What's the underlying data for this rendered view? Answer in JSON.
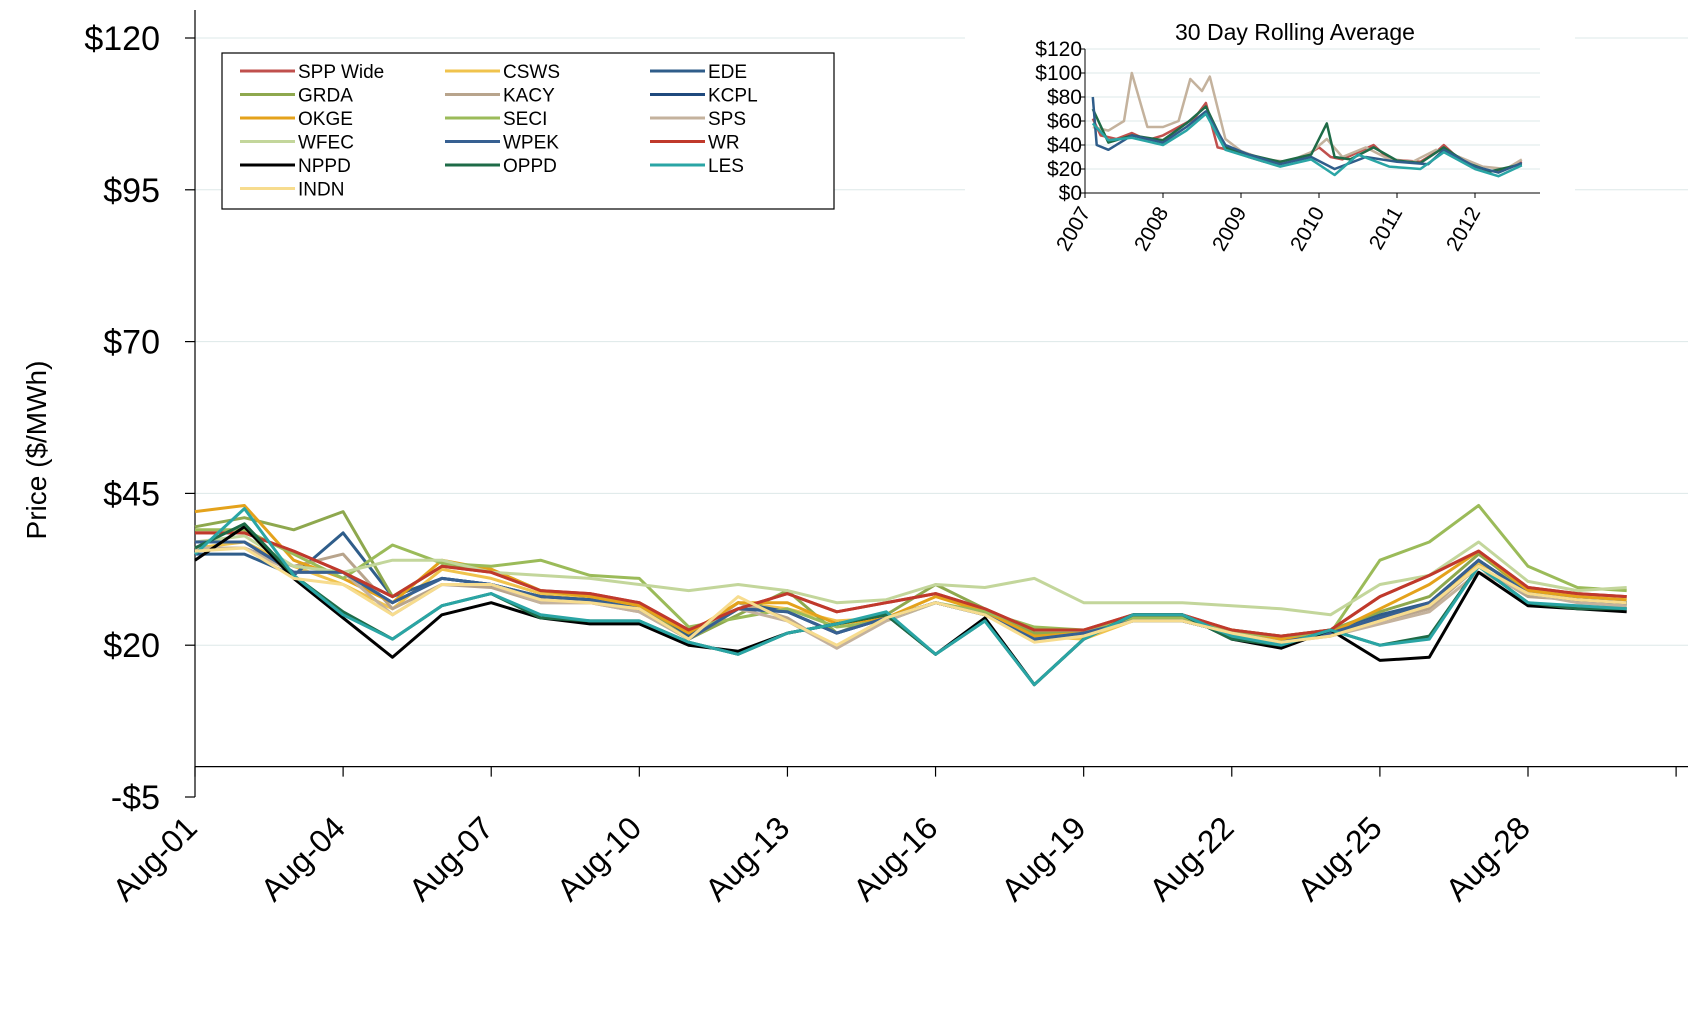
{
  "chart_data": [
    {
      "type": "line",
      "title": "",
      "xlabel": "",
      "ylabel": "Price ($/MWh)",
      "ylim": [
        -5,
        120
      ],
      "y_ticks": [
        -5,
        20,
        45,
        70,
        95,
        120
      ],
      "y_tick_labels": [
        "-$5",
        "$20",
        "$45",
        "$70",
        "$95",
        "$120"
      ],
      "grid": "horizontal",
      "legend_position": "top-left",
      "x": [
        "Aug-01",
        "Aug-02",
        "Aug-03",
        "Aug-04",
        "Aug-05",
        "Aug-06",
        "Aug-07",
        "Aug-08",
        "Aug-09",
        "Aug-10",
        "Aug-11",
        "Aug-12",
        "Aug-13",
        "Aug-14",
        "Aug-15",
        "Aug-16",
        "Aug-17",
        "Aug-18",
        "Aug-19",
        "Aug-20",
        "Aug-21",
        "Aug-22",
        "Aug-23",
        "Aug-24",
        "Aug-25",
        "Aug-26",
        "Aug-27",
        "Aug-28",
        "Aug-29",
        "Aug-30"
      ],
      "x_tick_labels": [
        "Aug-01",
        "Aug-04",
        "Aug-07",
        "Aug-10",
        "Aug-13",
        "Aug-16",
        "Aug-19",
        "Aug-22",
        "Aug-25",
        "Aug-28"
      ],
      "series": [
        {
          "name": "SPP Wide",
          "color": "#c0504d",
          "values": [
            38.5,
            38.5,
            35.5,
            32,
            28,
            33,
            32,
            29,
            28.5,
            27,
            22.5,
            26,
            28.5,
            25.5,
            27,
            28.5,
            26,
            22.5,
            22.5,
            25,
            25,
            22.5,
            21.5,
            22.5,
            28,
            31.5,
            35.5,
            29.5,
            28.5,
            28
          ]
        },
        {
          "name": "CSWS",
          "color": "#f0c34d",
          "values": [
            36,
            37,
            33,
            30,
            26,
            32.5,
            31,
            28.5,
            27.5,
            26,
            21.5,
            27,
            26,
            24,
            24.5,
            27,
            25,
            21.5,
            21,
            24,
            24,
            22,
            21,
            21.5,
            24.5,
            27,
            33.5,
            29.5,
            27.5,
            27
          ]
        },
        {
          "name": "EDE",
          "color": "#2f5d8a",
          "values": [
            35,
            35,
            31.5,
            38.5,
            28,
            31,
            30,
            28,
            27.5,
            26,
            21.5,
            27,
            25.5,
            22,
            24.5,
            27,
            25,
            21,
            22,
            24,
            24,
            22,
            20.5,
            22.5,
            25,
            27,
            34,
            28.5,
            27.5,
            27
          ]
        },
        {
          "name": "GRDA",
          "color": "#8ea84e",
          "values": [
            39.5,
            41,
            39,
            42,
            28,
            33,
            32.5,
            29,
            28,
            26.5,
            21,
            25,
            29,
            22,
            25,
            30,
            26,
            22,
            22,
            24.5,
            24.5,
            22.5,
            21.5,
            22.5,
            25.5,
            28,
            35,
            29,
            27.5,
            26.5
          ]
        },
        {
          "name": "KACY",
          "color": "#b8a48c",
          "values": [
            36,
            36,
            33,
            35,
            26,
            30,
            29.5,
            27,
            27,
            25.5,
            21,
            27,
            24.5,
            19.5,
            24.5,
            27,
            25,
            21,
            22,
            24,
            24,
            22,
            21,
            21.5,
            24,
            26,
            33,
            28,
            27.5,
            26
          ]
        },
        {
          "name": "KCPL",
          "color": "#1f497d",
          "values": [
            37,
            37,
            32,
            32,
            27,
            31,
            30,
            28,
            27.5,
            26,
            21,
            26,
            25.5,
            22,
            24.5,
            27,
            25,
            21,
            22,
            24,
            24,
            22,
            20.5,
            22,
            24.5,
            27,
            34,
            28.5,
            27.5,
            27
          ]
        },
        {
          "name": "OKGE",
          "color": "#e4a21b",
          "values": [
            42,
            43,
            34,
            31,
            27,
            34,
            32.5,
            29,
            28,
            26.5,
            22,
            27,
            27,
            23.5,
            24.5,
            28,
            25.5,
            21.5,
            22,
            24.5,
            24.5,
            22.5,
            21,
            22,
            26,
            30,
            35.5,
            29,
            28,
            27.5
          ]
        },
        {
          "name": "SECI",
          "color": "#9bbb59",
          "values": [
            39,
            39,
            35,
            31,
            36.5,
            33.5,
            33,
            34,
            31.5,
            31,
            23,
            24.5,
            26,
            23,
            24,
            27,
            25.5,
            23,
            22.5,
            24.5,
            24.5,
            22,
            21.5,
            22,
            34,
            37,
            43,
            33,
            29.5,
            29
          ]
        },
        {
          "name": "SPS",
          "color": "#c4b29d",
          "values": [
            36,
            36,
            32,
            32,
            25,
            30,
            30,
            27,
            27,
            25.5,
            21,
            26,
            24,
            19.5,
            24,
            27,
            25,
            21,
            22,
            24,
            24,
            22,
            20.5,
            21.5,
            23.5,
            25.5,
            32,
            28.5,
            27,
            26.5
          ]
        },
        {
          "name": "WFEC",
          "color": "#c3d69b",
          "values": [
            37,
            38,
            33,
            32,
            34,
            34,
            32,
            31.5,
            31,
            30,
            29,
            30,
            29,
            27,
            27.5,
            30,
            29.5,
            31,
            27,
            27,
            27,
            26.5,
            26,
            25,
            30,
            31.5,
            37,
            30.5,
            29,
            29.5
          ]
        },
        {
          "name": "WPEK",
          "color": "#376092",
          "values": [
            37,
            37,
            32,
            32,
            27,
            31,
            30,
            28,
            27.5,
            26,
            21,
            26,
            25.5,
            22,
            24.5,
            27,
            25,
            21,
            22,
            24,
            24,
            22,
            20.5,
            22,
            24.5,
            27,
            34,
            28.5,
            27.5,
            27
          ]
        },
        {
          "name": "WR",
          "color": "#c0392b",
          "values": [
            38.5,
            38.5,
            35.5,
            32,
            28,
            33,
            32,
            29,
            28.5,
            27,
            22.5,
            26,
            28.5,
            25.5,
            27,
            28.5,
            26,
            22.5,
            22.5,
            25,
            25,
            22.5,
            21.5,
            22.5,
            28,
            31.5,
            35.5,
            29.5,
            28.5,
            28
          ]
        },
        {
          "name": "NPPD",
          "color": "#000000",
          "values": [
            34,
            39.5,
            31,
            24.5,
            18,
            25,
            27,
            24.5,
            23.5,
            23.5,
            20,
            19,
            22,
            23.5,
            25,
            18.5,
            24.5,
            13.5,
            21,
            25,
            25,
            21,
            19.5,
            22.5,
            17.5,
            18,
            32,
            26.5,
            26,
            25.5
          ]
        },
        {
          "name": "OPPD",
          "color": "#1e6b47",
          "values": [
            36,
            40,
            31.5,
            25.5,
            21,
            26.5,
            28.5,
            24.5,
            24,
            24,
            20.5,
            18.5,
            22,
            23.5,
            25,
            18.5,
            24,
            13.5,
            21,
            25,
            25,
            21,
            20,
            22.5,
            20,
            21.5,
            33,
            27,
            26,
            26
          ]
        },
        {
          "name": "LES",
          "color": "#2aa5a5",
          "values": [
            35,
            42.5,
            31.5,
            25,
            21,
            26.5,
            28.5,
            25,
            24,
            24,
            20.5,
            18.5,
            22,
            23.5,
            25.5,
            18.5,
            24,
            13.5,
            21,
            25,
            25,
            21.5,
            20,
            22.5,
            20,
            21,
            33,
            27,
            26.5,
            26
          ]
        },
        {
          "name": "INDN",
          "color": "#f7dc8e",
          "values": [
            35.5,
            36,
            31,
            30,
            25,
            30,
            30,
            27.5,
            27,
            26,
            21,
            28,
            24,
            20,
            24.5,
            27,
            25,
            20.5,
            21.5,
            24,
            24,
            22,
            20.5,
            21.5,
            24,
            26.5,
            33,
            28.5,
            27.5,
            27
          ]
        }
      ]
    },
    {
      "type": "line",
      "title": "30 Day Rolling Average",
      "ylim": [
        0,
        120
      ],
      "y_ticks": [
        0,
        20,
        40,
        60,
        80,
        100,
        120
      ],
      "y_tick_labels": [
        "$0",
        "$20",
        "$40",
        "$60",
        "$80",
        "$100",
        "$120"
      ],
      "x_tick_labels": [
        "2007",
        "2008",
        "2009",
        "2010",
        "2011",
        "2012"
      ],
      "grid": "horizontal",
      "series": [
        {
          "name": "SPP Wide",
          "color": "#c0504d",
          "x": [
            2007.1,
            2007.2,
            2007.4,
            2007.6,
            2007.8,
            2008.0,
            2008.2,
            2008.4,
            2008.55,
            2008.7,
            2008.9,
            2009.1,
            2009.3,
            2009.5,
            2009.7,
            2009.9,
            2010.0,
            2010.15,
            2010.3,
            2010.5,
            2010.7,
            2010.9,
            2011.1,
            2011.3,
            2011.5,
            2011.6,
            2011.8,
            2012.0,
            2012.2,
            2012.4,
            2012.6
          ],
          "values": [
            62,
            48,
            45,
            50,
            44,
            48,
            55,
            62,
            75,
            38,
            35,
            30,
            26,
            25,
            28,
            34,
            38,
            30,
            28,
            34,
            40,
            28,
            27,
            26,
            34,
            40,
            28,
            22,
            18,
            20,
            26
          ]
        },
        {
          "name": "SPS",
          "color": "#c4b29d",
          "x": [
            2007.1,
            2007.3,
            2007.5,
            2007.6,
            2007.8,
            2008.0,
            2008.2,
            2008.35,
            2008.5,
            2008.6,
            2008.8,
            2009.0,
            2009.3,
            2009.6,
            2009.9,
            2010.1,
            2010.3,
            2010.6,
            2010.9,
            2011.2,
            2011.5,
            2011.8,
            2012.1,
            2012.4,
            2012.6
          ],
          "values": [
            55,
            52,
            60,
            100,
            55,
            55,
            60,
            95,
            85,
            97,
            45,
            35,
            28,
            26,
            34,
            45,
            30,
            38,
            28,
            26,
            36,
            30,
            22,
            20,
            28
          ]
        },
        {
          "name": "OPPD",
          "color": "#1e6b47",
          "x": [
            2007.1,
            2007.3,
            2007.6,
            2008.0,
            2008.3,
            2008.55,
            2008.8,
            2009.1,
            2009.5,
            2009.9,
            2010.1,
            2010.2,
            2010.4,
            2010.7,
            2011.0,
            2011.3,
            2011.6,
            2011.9,
            2012.2,
            2012.6
          ],
          "values": [
            70,
            42,
            48,
            44,
            58,
            72,
            38,
            32,
            26,
            32,
            58,
            30,
            28,
            38,
            27,
            25,
            38,
            25,
            18,
            24
          ]
        },
        {
          "name": "EDE",
          "color": "#2f5d8a",
          "x": [
            2007.1,
            2007.15,
            2007.3,
            2007.6,
            2008.0,
            2008.3,
            2008.55,
            2008.8,
            2009.1,
            2009.5,
            2009.9,
            2010.2,
            2010.6,
            2011.0,
            2011.4,
            2011.6,
            2012.0,
            2012.3,
            2012.6
          ],
          "values": [
            80,
            40,
            36,
            48,
            42,
            55,
            68,
            40,
            32,
            24,
            30,
            20,
            30,
            26,
            24,
            36,
            22,
            17,
            25
          ]
        },
        {
          "name": "LES",
          "color": "#2aa5a5",
          "x": [
            2007.1,
            2007.3,
            2007.6,
            2008.0,
            2008.3,
            2008.55,
            2008.8,
            2009.1,
            2009.5,
            2009.9,
            2010.2,
            2010.5,
            2010.9,
            2011.3,
            2011.6,
            2012.0,
            2012.3,
            2012.6
          ],
          "values": [
            58,
            44,
            46,
            40,
            52,
            66,
            36,
            30,
            22,
            28,
            15,
            32,
            22,
            20,
            34,
            20,
            14,
            23
          ]
        }
      ]
    }
  ],
  "legend": [
    {
      "name": "SPP Wide",
      "color": "#c0504d"
    },
    {
      "name": "CSWS",
      "color": "#f0c34d"
    },
    {
      "name": "EDE",
      "color": "#2f5d8a"
    },
    {
      "name": "GRDA",
      "color": "#8ea84e"
    },
    {
      "name": "KACY",
      "color": "#b8a48c"
    },
    {
      "name": "KCPL",
      "color": "#1f497d"
    },
    {
      "name": "OKGE",
      "color": "#e4a21b"
    },
    {
      "name": "SECI",
      "color": "#9bbb59"
    },
    {
      "name": "SPS",
      "color": "#c4b29d"
    },
    {
      "name": "WFEC",
      "color": "#c3d69b"
    },
    {
      "name": "WPEK",
      "color": "#376092"
    },
    {
      "name": "WR",
      "color": "#c0392b"
    },
    {
      "name": "NPPD",
      "color": "#000000"
    },
    {
      "name": "OPPD",
      "color": "#1e6b47"
    },
    {
      "name": "LES",
      "color": "#2aa5a5"
    },
    {
      "name": "INDN",
      "color": "#f7dc8e"
    }
  ]
}
